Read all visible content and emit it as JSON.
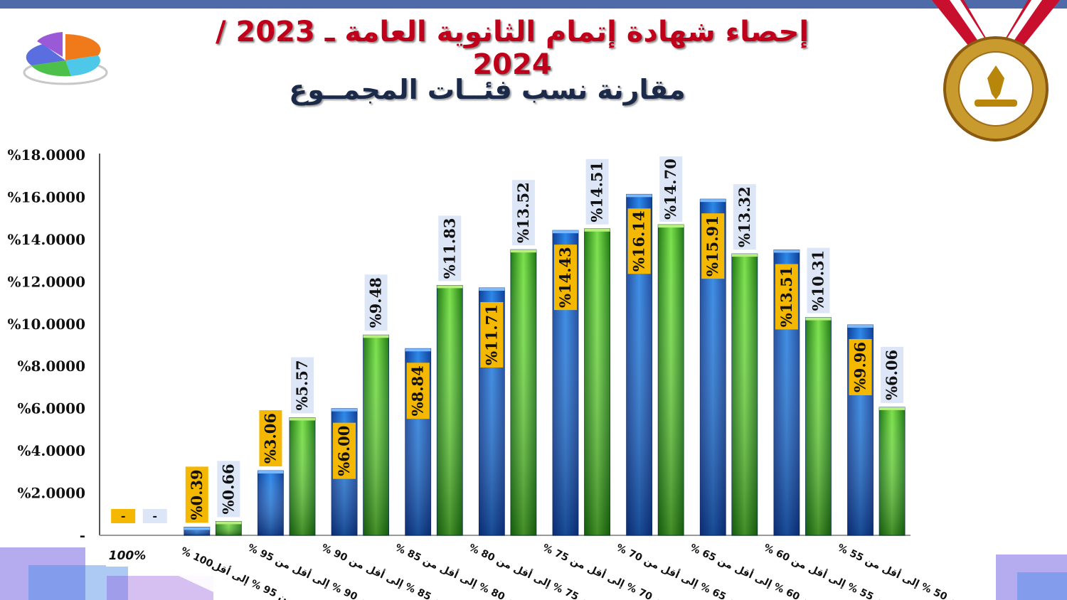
{
  "header": {
    "title": "إحصاء شهادة إتمام الثانوية العامة ـ 2023 / 2024",
    "subtitle": "مقارنة نسب فئــات المجمــوع"
  },
  "colors": {
    "blue_bar": "#1a6fd0",
    "green_bar": "#3aa02a",
    "blue_label_bg": "#f5b800",
    "green_label_bg": "#dde6f7",
    "title": "#c0001a"
  },
  "icons": {
    "chart_icon": "pie-chart-icon",
    "emblem": "ministry-seal-icon"
  },
  "chart_data": {
    "type": "bar",
    "ylim": [
      0,
      18
    ],
    "yticks": [
      "%18.0000",
      "%16.0000",
      "%14.0000",
      "%12.0000",
      "%10.0000",
      "%8.0000",
      "%6.0000",
      "%4.0000",
      "%2.0000",
      "-"
    ],
    "categories": [
      "100%",
      "من 95 % إلى أقل100 %",
      "من 90 % إلى أقل من 95 %",
      "من 85 % إلى أقل من 90 %",
      "من 80 % إلى أقل من 85 %",
      "من 75 % إلى أقل من 80 %",
      "من 70 % إلى أقل من 75 %",
      "من 65 % إلى أقل من 70 %",
      "من 60 % إلى أقل من 65 %",
      "من 55 % إلى أقل من 60 %",
      "من 50 % إلى أقل من 55 %"
    ],
    "series": [
      {
        "values": [
          0,
          0.39,
          3.06,
          6.0,
          8.84,
          11.71,
          14.43,
          16.14,
          15.91,
          13.51,
          9.96
        ],
        "labels": [
          "-",
          "%0.39",
          "%3.06",
          "%6.00",
          "%8.84",
          "%11.71",
          "%14.43",
          "%16.14",
          "%15.91",
          "%13.51",
          "%9.96"
        ]
      },
      {
        "values": [
          0,
          0.66,
          5.57,
          9.48,
          11.83,
          13.52,
          14.51,
          14.7,
          13.32,
          10.31,
          6.06
        ],
        "labels": [
          "-",
          "%0.66",
          "%5.57",
          "%9.48",
          "%11.83",
          "%13.52",
          "%14.51",
          "%14.70",
          "%13.32",
          "%10.31",
          "%6.06"
        ]
      }
    ]
  }
}
